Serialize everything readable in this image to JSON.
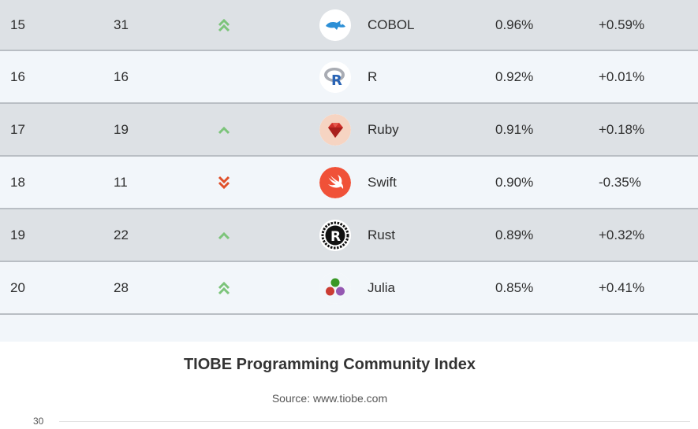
{
  "table": {
    "rows": [
      {
        "current": "15",
        "previous": "31",
        "change": "up2",
        "language": "COBOL",
        "logo": "cobol-icon",
        "rating": "0.96%",
        "delta": "+0.59%"
      },
      {
        "current": "16",
        "previous": "16",
        "change": "none",
        "language": "R",
        "logo": "r-icon",
        "rating": "0.92%",
        "delta": "+0.01%"
      },
      {
        "current": "17",
        "previous": "19",
        "change": "up1",
        "language": "Ruby",
        "logo": "ruby-icon",
        "rating": "0.91%",
        "delta": "+0.18%"
      },
      {
        "current": "18",
        "previous": "11",
        "change": "down2",
        "language": "Swift",
        "logo": "swift-icon",
        "rating": "0.90%",
        "delta": "-0.35%"
      },
      {
        "current": "19",
        "previous": "22",
        "change": "up1",
        "language": "Rust",
        "logo": "rust-icon",
        "rating": "0.89%",
        "delta": "+0.32%"
      },
      {
        "current": "20",
        "previous": "28",
        "change": "up2",
        "language": "Julia",
        "logo": "julia-icon",
        "rating": "0.85%",
        "delta": "+0.41%"
      }
    ]
  },
  "chart": {
    "title": "TIOBE Programming Community Index",
    "subtitle": "Source: www.tiobe.com",
    "first_ytick": "30"
  },
  "colors": {
    "up": "#7cc47a",
    "down": "#e0502a",
    "row_shade": "#dde1e5",
    "row_light": "#f2f6fa"
  }
}
